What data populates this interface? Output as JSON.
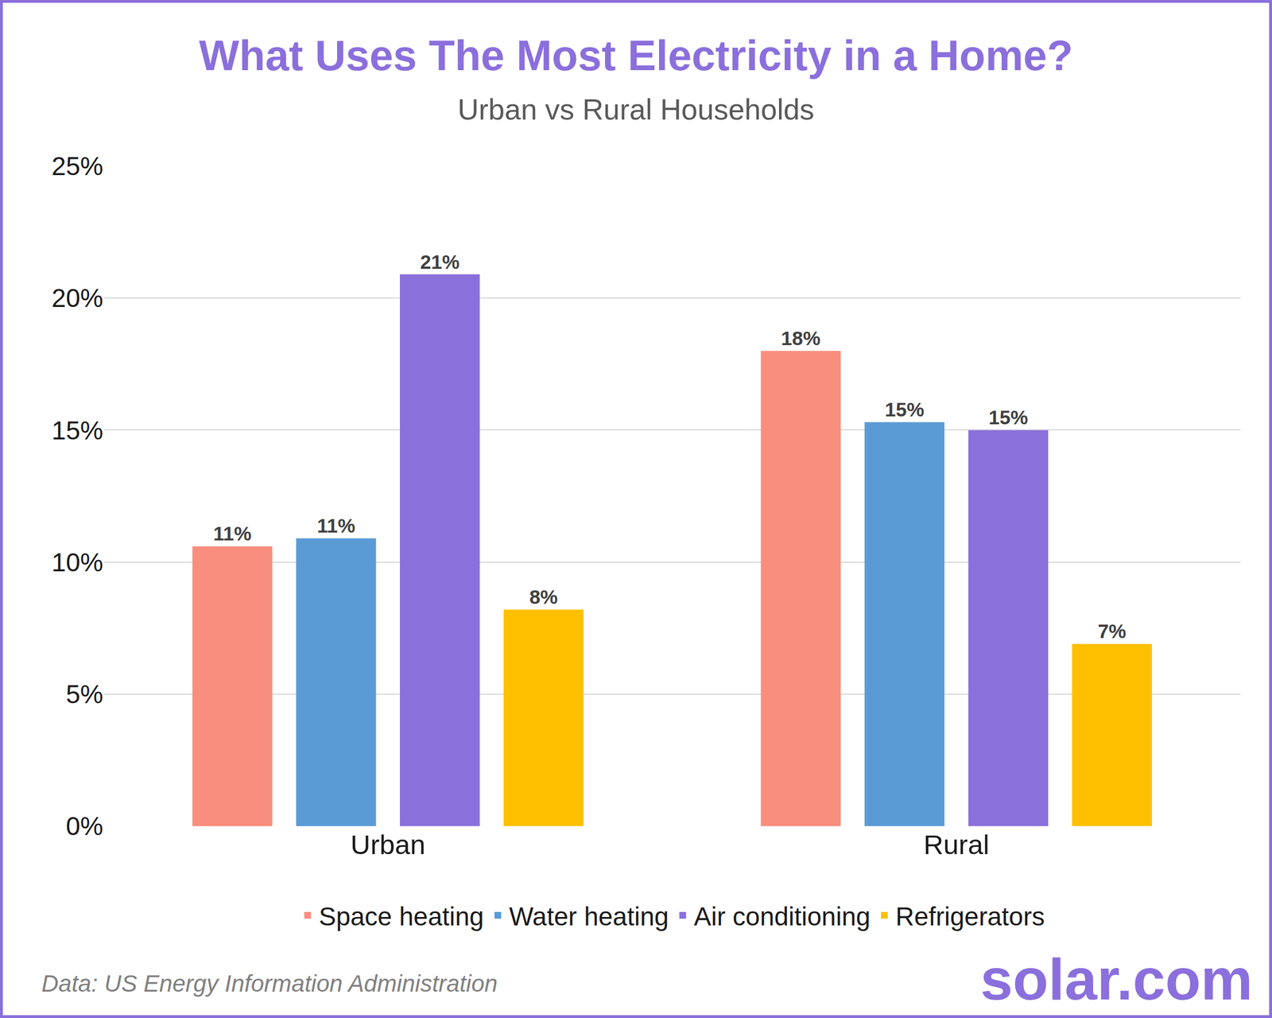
{
  "chart_data": {
    "type": "bar",
    "title": "What Uses The Most Electricity in a Home?",
    "subtitle": "Urban vs Rural Households",
    "source": "Data: US Energy Information Administration",
    "logo": "solar.com",
    "categories": [
      "Urban",
      "Rural"
    ],
    "series": [
      {
        "name": "Space heating",
        "color": "#f98e7e",
        "values": [
          10.6,
          18.0
        ],
        "value_labels": [
          "11%",
          "18%"
        ]
      },
      {
        "name": "Water heating",
        "color": "#5b9bd5",
        "values": [
          10.9,
          15.3
        ],
        "value_labels": [
          "11%",
          "15%"
        ]
      },
      {
        "name": "Air conditioning",
        "color": "#8a70db",
        "values": [
          20.9,
          15.0
        ],
        "value_labels": [
          "21%",
          "15%"
        ]
      },
      {
        "name": "Refrigerators",
        "color": "#ffc000",
        "values": [
          8.2,
          6.9
        ],
        "value_labels": [
          "8%",
          "7%"
        ]
      }
    ],
    "ylim": [
      0,
      25
    ],
    "yticks": [
      {
        "value": 0,
        "label": "0%"
      },
      {
        "value": 5,
        "label": "5%"
      },
      {
        "value": 10,
        "label": "10%"
      },
      {
        "value": 15,
        "label": "15%"
      },
      {
        "value": 20,
        "label": "20%"
      },
      {
        "value": 25,
        "label": "25%"
      }
    ],
    "grid": true,
    "legend": "bottom",
    "data_labels": true
  }
}
